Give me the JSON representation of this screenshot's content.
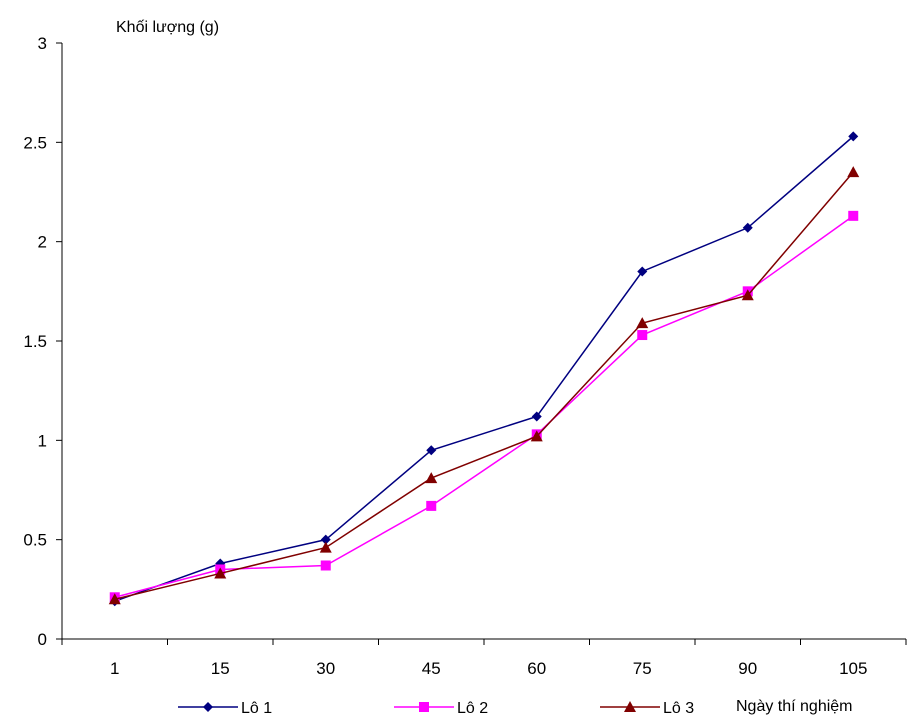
{
  "chart_data": {
    "type": "line",
    "ylabel": "Khối lượng (g)",
    "xlabel": "Ngày thí nghiệm",
    "categories": [
      "1",
      "15",
      "30",
      "45",
      "60",
      "75",
      "90",
      "105"
    ],
    "ylim": [
      0,
      3
    ],
    "yticks": [
      "0",
      "0.5",
      "1",
      "1.5",
      "2",
      "2.5",
      "3"
    ],
    "grid": false,
    "legend_position": "bottom",
    "series": [
      {
        "name": "Lô 1",
        "color": "#000080",
        "marker": "diamond",
        "values": [
          0.19,
          0.38,
          0.5,
          0.95,
          1.12,
          1.85,
          2.07,
          2.53
        ]
      },
      {
        "name": "Lô 2",
        "color": "#FF00FF",
        "marker": "square",
        "values": [
          0.21,
          0.35,
          0.37,
          0.67,
          1.03,
          1.53,
          1.75,
          2.13
        ]
      },
      {
        "name": "Lô 3",
        "color": "#800000",
        "marker": "triangle",
        "values": [
          0.2,
          0.33,
          0.46,
          0.81,
          1.02,
          1.59,
          1.73,
          2.35
        ]
      }
    ]
  }
}
